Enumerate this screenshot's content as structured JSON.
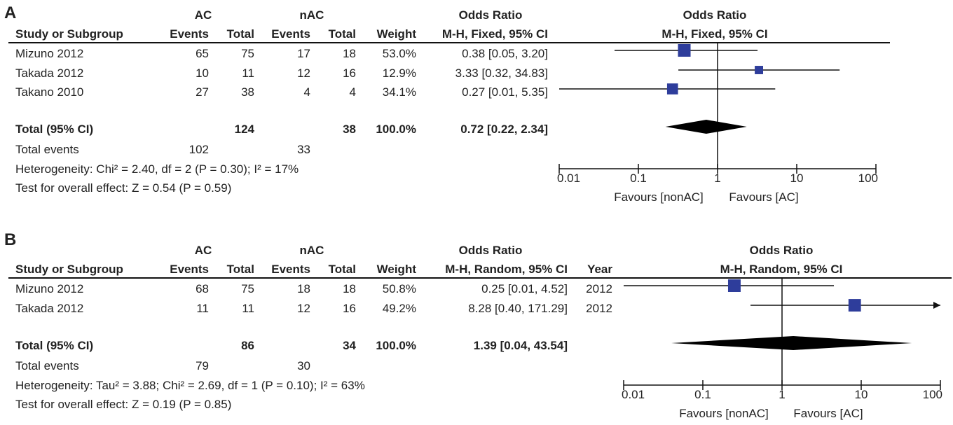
{
  "chart_data": [
    {
      "type": "forest",
      "panel_label": "A",
      "group1_label": "AC",
      "group2_label": "nAC",
      "columns": {
        "study": "Study or Subgroup",
        "events": "Events",
        "total": "Total",
        "weight": "Weight",
        "or_header_top": "Odds Ratio",
        "or_header_bottom": "M-H, Fixed, 95% CI",
        "year": ""
      },
      "plot_header_top": "Odds Ratio",
      "plot_header_bottom": "M-H, Fixed, 95% CI",
      "studies": [
        {
          "name": "Mizuno 2012",
          "ac_events": "65",
          "ac_total": "75",
          "nac_events": "17",
          "nac_total": "18",
          "weight": "53.0%",
          "ci_text": "0.38 [0.05, 3.20]",
          "year": "",
          "or": 0.38,
          "lo": 0.05,
          "hi": 3.2
        },
        {
          "name": "Takada 2012",
          "ac_events": "10",
          "ac_total": "11",
          "nac_events": "12",
          "nac_total": "16",
          "weight": "12.9%",
          "ci_text": "3.33 [0.32, 34.83]",
          "year": "",
          "or": 3.33,
          "lo": 0.32,
          "hi": 34.83
        },
        {
          "name": "Takano 2010",
          "ac_events": "27",
          "ac_total": "38",
          "nac_events": "4",
          "nac_total": "4",
          "weight": "34.1%",
          "ci_text": "0.27 [0.01, 5.35]",
          "year": "",
          "or": 0.27,
          "lo": 0.01,
          "hi": 5.35
        }
      ],
      "total": {
        "label": "Total (95% CI)",
        "ac_total": "124",
        "nac_total": "38",
        "weight": "100.0%",
        "ci_text": "0.72 [0.22, 2.34]",
        "or": 0.72,
        "lo": 0.22,
        "hi": 2.34
      },
      "total_events": {
        "label": "Total events",
        "ac": "102",
        "nac": "33"
      },
      "heterogeneity": "Heterogeneity: Chi² = 2.40, df = 2 (P = 0.30); I² = 17%",
      "overall_effect": "Test for overall effect: Z = 0.54 (P = 0.59)",
      "axis": {
        "scale": "log",
        "min": 0.01,
        "max": 100,
        "ticks": [
          "0.01",
          "0.1",
          "1",
          "10",
          "100"
        ],
        "tick_values": [
          0.01,
          0.1,
          1,
          10,
          100
        ]
      },
      "favours_left": "Favours [nonAC]",
      "favours_right": "Favours [AC]",
      "marker_color": "#2e3d9b"
    },
    {
      "type": "forest",
      "panel_label": "B",
      "group1_label": "AC",
      "group2_label": "nAC",
      "columns": {
        "study": "Study or Subgroup",
        "events": "Events",
        "total": "Total",
        "weight": "Weight",
        "or_header_top": "Odds Ratio",
        "or_header_bottom": "M-H, Random, 95% CI",
        "year": "Year"
      },
      "plot_header_top": "Odds Ratio",
      "plot_header_bottom": "M-H, Random, 95% CI",
      "studies": [
        {
          "name": "Mizuno 2012",
          "ac_events": "68",
          "ac_total": "75",
          "nac_events": "18",
          "nac_total": "18",
          "weight": "50.8%",
          "ci_text": "0.25 [0.01, 4.52]",
          "year": "2012",
          "or": 0.25,
          "lo": 0.01,
          "hi": 4.52
        },
        {
          "name": "Takada 2012",
          "ac_events": "11",
          "ac_total": "11",
          "nac_events": "12",
          "nac_total": "16",
          "weight": "49.2%",
          "ci_text": "8.28 [0.40, 171.29]",
          "year": "2012",
          "or": 8.28,
          "lo": 0.4,
          "hi": 171.29
        }
      ],
      "total": {
        "label": "Total (95% CI)",
        "ac_total": "86",
        "nac_total": "34",
        "weight": "100.0%",
        "ci_text": "1.39 [0.04, 43.54]",
        "or": 1.39,
        "lo": 0.04,
        "hi": 43.54
      },
      "total_events": {
        "label": "Total events",
        "ac": "79",
        "nac": "30"
      },
      "heterogeneity": "Heterogeneity: Tau² = 3.88; Chi² = 2.69, df = 1 (P = 0.10); I² = 63%",
      "overall_effect": "Test for overall effect: Z = 0.19 (P = 0.85)",
      "axis": {
        "scale": "log",
        "min": 0.01,
        "max": 100,
        "ticks": [
          "0.01",
          "0.1",
          "1",
          "10",
          "100"
        ],
        "tick_values": [
          0.01,
          0.1,
          1,
          10,
          100
        ]
      },
      "favours_left": "Favours [nonAC]",
      "favours_right": "Favours [AC]",
      "marker_color": "#2e3d9b"
    }
  ]
}
